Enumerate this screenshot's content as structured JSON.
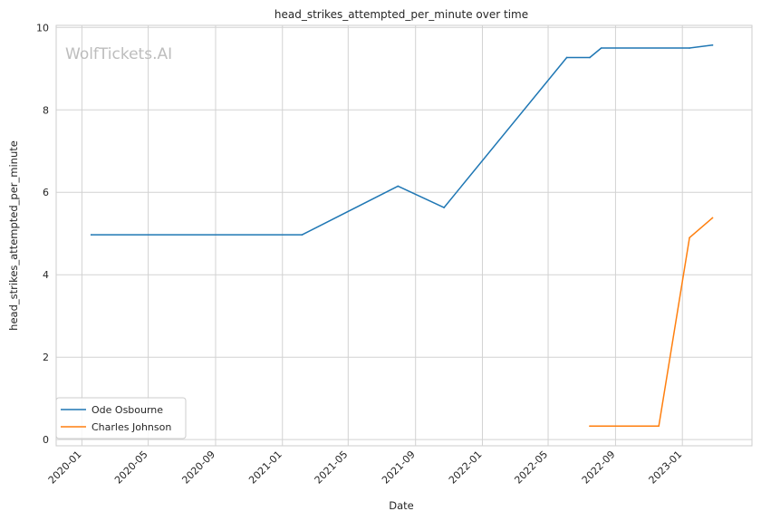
{
  "chart_data": {
    "type": "line",
    "title": "head_strikes_attempted_per_minute over time",
    "xlabel": "Date",
    "ylabel": "head_strikes_attempted_per_minute",
    "watermark": "WolfTickets.AI",
    "x_ticks": [
      "2020-01",
      "2020-05",
      "2020-09",
      "2021-01",
      "2021-05",
      "2021-09",
      "2022-01",
      "2022-05",
      "2022-09",
      "2023-01"
    ],
    "y_ticks": [
      "0",
      "2",
      "4",
      "6",
      "8",
      "10"
    ],
    "xlim": [
      "2019-11-15",
      "2023-05-08"
    ],
    "ylim": [
      -0.15,
      10.05
    ],
    "grid": true,
    "legend_position": "lower-left",
    "series": [
      {
        "name": "Ode Osbourne",
        "color": "#1f77b4",
        "points": [
          [
            "2020-01-18",
            4.97
          ],
          [
            "2021-02-06",
            4.97
          ],
          [
            "2021-07-31",
            6.15
          ],
          [
            "2021-10-23",
            5.63
          ],
          [
            "2022-06-04",
            9.27
          ],
          [
            "2022-07-16",
            9.27
          ],
          [
            "2022-08-06",
            9.5
          ],
          [
            "2023-01-14",
            9.5
          ],
          [
            "2023-02-25",
            9.57
          ]
        ]
      },
      {
        "name": "Charles Johnson",
        "color": "#ff7f0e",
        "points": [
          [
            "2022-07-16",
            0.33
          ],
          [
            "2022-11-19",
            0.33
          ],
          [
            "2023-01-14",
            4.9
          ],
          [
            "2023-02-25",
            5.38
          ]
        ]
      }
    ]
  }
}
